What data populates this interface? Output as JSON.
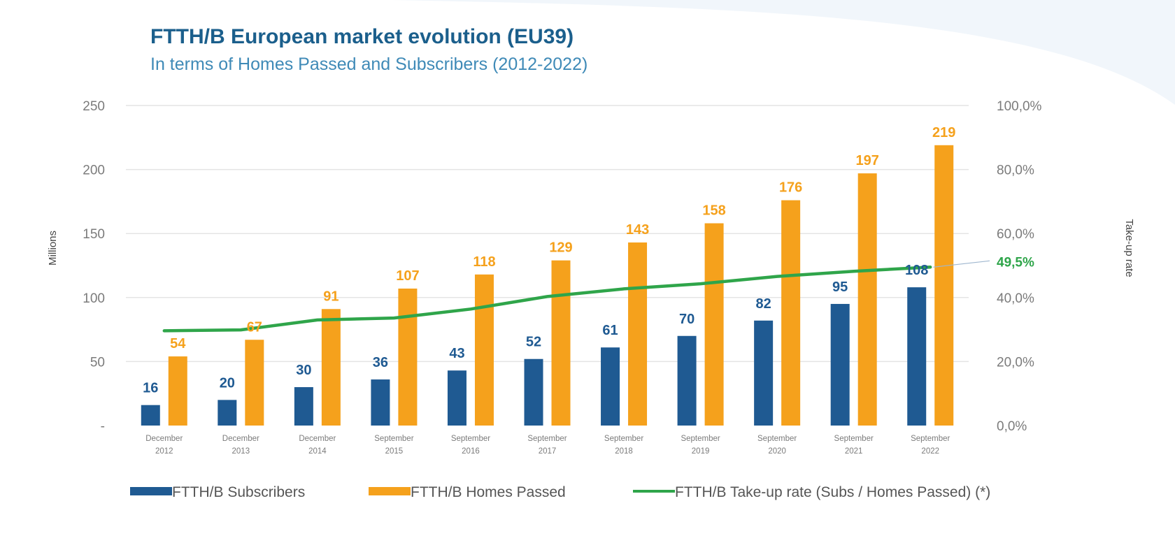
{
  "chart_data": {
    "type": "bar",
    "title": "FTTH/B European market evolution (EU39)",
    "subtitle": "In terms of Homes Passed and Subscribers (2012-2022)",
    "categories": [
      [
        "December",
        "2012"
      ],
      [
        "December",
        "2013"
      ],
      [
        "December",
        "2014"
      ],
      [
        "September",
        "2015"
      ],
      [
        "September",
        "2016"
      ],
      [
        "September",
        "2017"
      ],
      [
        "September",
        "2018"
      ],
      [
        "September",
        "2019"
      ],
      [
        "September",
        "2020"
      ],
      [
        "September",
        "2021"
      ],
      [
        "September",
        "2022"
      ]
    ],
    "series": [
      {
        "name": "FTTH/B Subscribers",
        "kind": "bar",
        "axis": "left",
        "color": "#1f5a92",
        "label_color": "#1f5a92",
        "values": [
          16,
          20,
          30,
          36,
          43,
          52,
          61,
          70,
          82,
          95,
          108
        ]
      },
      {
        "name": "FTTH/B Homes Passed",
        "kind": "bar",
        "axis": "left",
        "color": "#f5a11c",
        "label_color": "#f5a11c",
        "values": [
          54,
          67,
          91,
          107,
          118,
          129,
          143,
          158,
          176,
          197,
          219
        ]
      },
      {
        "name": "FTTH/B Take-up rate (Subs / Homes Passed) (*)",
        "kind": "line",
        "axis": "right",
        "color": "#2fa54a",
        "values": [
          29.6,
          29.9,
          33.0,
          33.6,
          36.4,
          40.3,
          42.7,
          44.3,
          46.6,
          48.2,
          49.5
        ]
      }
    ],
    "ylabel": "Millions",
    "y2label": "Take-up rate",
    "ylim": [
      0,
      250
    ],
    "y2lim": [
      0,
      100
    ],
    "yticks": [
      "-",
      "50",
      "100",
      "150",
      "200",
      "250"
    ],
    "y2ticks": [
      "0,0%",
      "20,0%",
      "40,0%",
      "60,0%",
      "80,0%",
      "100,0%"
    ],
    "rate_callout": "49,5%",
    "gridlines": true,
    "legend_position": "bottom",
    "colors": {
      "title": "#1b5f8c",
      "subtitle": "#3f8ab7",
      "grid": "#e4e4e4",
      "callout": "#2fa54a",
      "background_wave": "#f1f6fb"
    }
  }
}
